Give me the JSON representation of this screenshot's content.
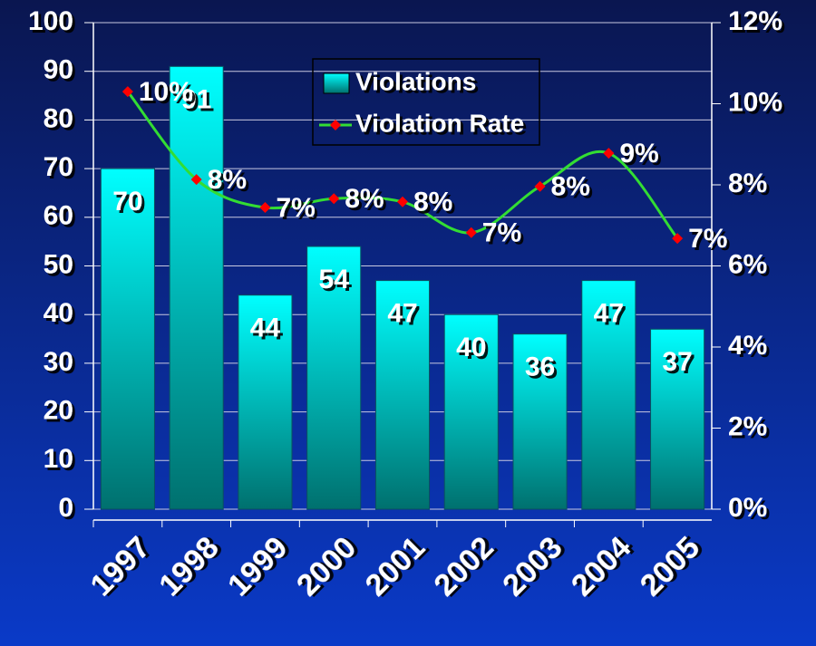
{
  "chart_data": {
    "type": "bar",
    "categories": [
      "1997",
      "1998",
      "1999",
      "2000",
      "2001",
      "2002",
      "2003",
      "2004",
      "2005"
    ],
    "series": [
      {
        "name": "Violations",
        "type": "bar",
        "color": "#00e5e5",
        "values": [
          70,
          91,
          44,
          54,
          47,
          40,
          36,
          47,
          37
        ]
      },
      {
        "name": "Violation Rate",
        "type": "line",
        "axis": "y2",
        "color": "#33dd33",
        "marker_color": "#ff0000",
        "values": [
          10.3,
          8.13,
          7.44,
          7.66,
          7.58,
          6.82,
          7.96,
          8.78,
          6.68
        ],
        "value_labels": [
          "10%",
          "8%",
          "7%",
          "8%",
          "8%",
          "7%",
          "8%",
          "9%",
          "7%"
        ]
      }
    ],
    "ylim": [
      0,
      100
    ],
    "yticks": [
      0,
      10,
      20,
      30,
      40,
      50,
      60,
      70,
      80,
      90,
      100
    ],
    "y2lim": [
      0,
      12
    ],
    "y2ticks": [
      {
        "value": 0,
        "label": "0%"
      },
      {
        "value": 2,
        "label": "2%"
      },
      {
        "value": 4,
        "label": "4%"
      },
      {
        "value": 6,
        "label": "6%"
      },
      {
        "value": 8,
        "label": "8%"
      },
      {
        "value": 10,
        "label": "10%"
      },
      {
        "value": 12,
        "label": "12%"
      }
    ],
    "grid": true,
    "legend": "top"
  }
}
